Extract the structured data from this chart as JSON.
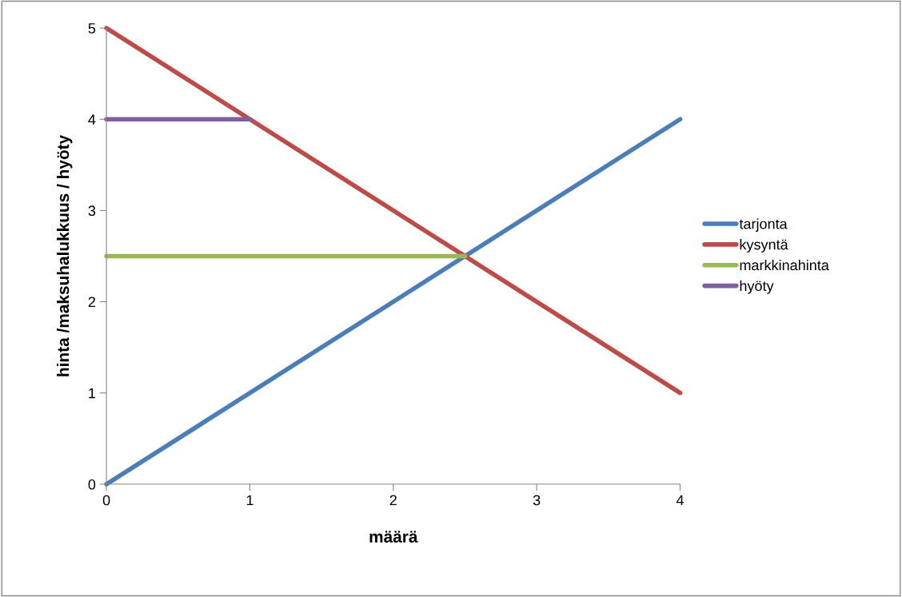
{
  "chart_data": {
    "type": "line",
    "xlabel": "määrä",
    "ylabel": "hinta /maksuhalukkuus / hyöty",
    "xlim": [
      0,
      4
    ],
    "ylim": [
      0,
      5
    ],
    "xticks": [
      0,
      1,
      2,
      3,
      4
    ],
    "yticks": [
      0,
      1,
      2,
      3,
      4,
      5
    ],
    "grid": false,
    "legend": "right",
    "marker": "none",
    "line_style": "solid",
    "series": [
      {
        "name": "tarjonta",
        "color": "#4a7ebb",
        "x": [
          0,
          4
        ],
        "values": [
          0,
          4
        ]
      },
      {
        "name": "kysyntä",
        "color": "#be4b48",
        "x": [
          0,
          4
        ],
        "values": [
          5,
          1
        ]
      },
      {
        "name": "markkinahinta",
        "color": "#98b954",
        "x": [
          0,
          2.5
        ],
        "values": [
          2.5,
          2.5
        ]
      },
      {
        "name": "hyöty",
        "color": "#7d60a0",
        "x": [
          0,
          1
        ],
        "values": [
          4,
          4
        ]
      }
    ]
  }
}
